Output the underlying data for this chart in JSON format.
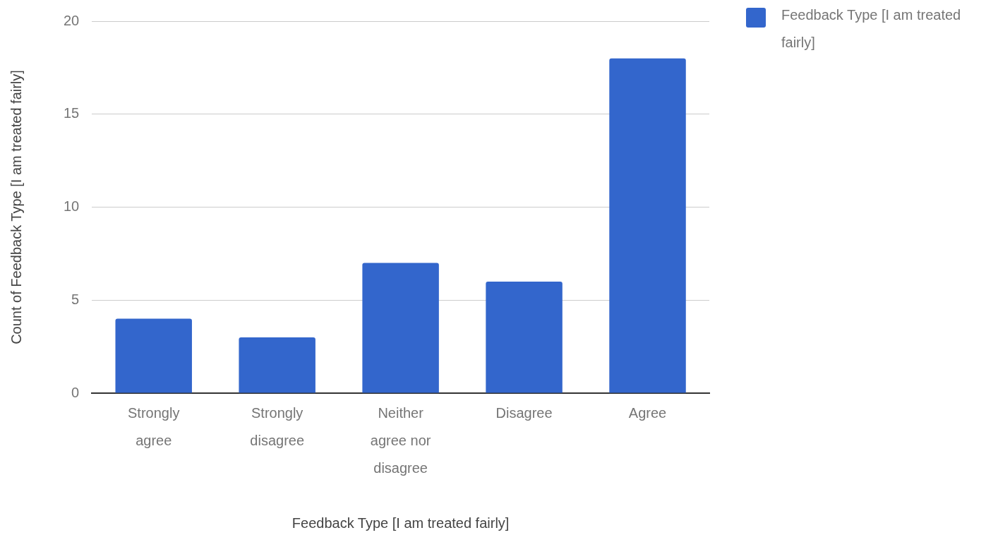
{
  "chart_data": {
    "type": "bar",
    "xlabel": "Feedback Type [I am treated fairly]",
    "ylabel": "Count of Feedback Type [I am treated fairly]",
    "categories": [
      "Strongly agree",
      "Strongly disagree",
      "Neither agree nor disagree",
      "Disagree",
      "Agree"
    ],
    "series": [
      {
        "name": "Feedback Type [I am treated fairly]",
        "color": "#3366cc",
        "values": [
          4,
          3,
          7,
          6,
          18
        ]
      }
    ],
    "ylim": [
      0,
      20
    ],
    "yticks": [
      0,
      5,
      10,
      15,
      20
    ],
    "grid": "y",
    "legend": "top right"
  }
}
